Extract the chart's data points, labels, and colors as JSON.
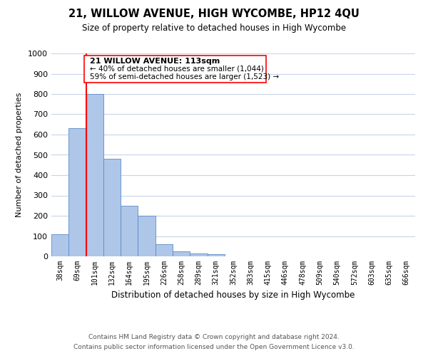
{
  "title": "21, WILLOW AVENUE, HIGH WYCOMBE, HP12 4QU",
  "subtitle": "Size of property relative to detached houses in High Wycombe",
  "xlabel": "Distribution of detached houses by size in High Wycombe",
  "ylabel": "Number of detached properties",
  "bin_labels": [
    "38sqm",
    "69sqm",
    "101sqm",
    "132sqm",
    "164sqm",
    "195sqm",
    "226sqm",
    "258sqm",
    "289sqm",
    "321sqm",
    "352sqm",
    "383sqm",
    "415sqm",
    "446sqm",
    "478sqm",
    "509sqm",
    "540sqm",
    "572sqm",
    "603sqm",
    "635sqm",
    "666sqm"
  ],
  "bar_values": [
    110,
    630,
    800,
    480,
    250,
    200,
    60,
    25,
    15,
    10,
    0,
    0,
    0,
    0,
    0,
    0,
    0,
    0,
    0,
    0,
    0
  ],
  "bar_color": "#aec6e8",
  "bar_edge_color": "#5b8cc8",
  "ylim": [
    0,
    1000
  ],
  "yticks": [
    0,
    100,
    200,
    300,
    400,
    500,
    600,
    700,
    800,
    900,
    1000
  ],
  "red_line_bin": 2,
  "annotation_title": "21 WILLOW AVENUE: 113sqm",
  "annotation_line1": "← 40% of detached houses are smaller (1,044)",
  "annotation_line2": "59% of semi-detached houses are larger (1,523) →",
  "footer_line1": "Contains HM Land Registry data © Crown copyright and database right 2024.",
  "footer_line2": "Contains public sector information licensed under the Open Government Licence v3.0.",
  "background_color": "#ffffff",
  "grid_color": "#c8d4e8"
}
